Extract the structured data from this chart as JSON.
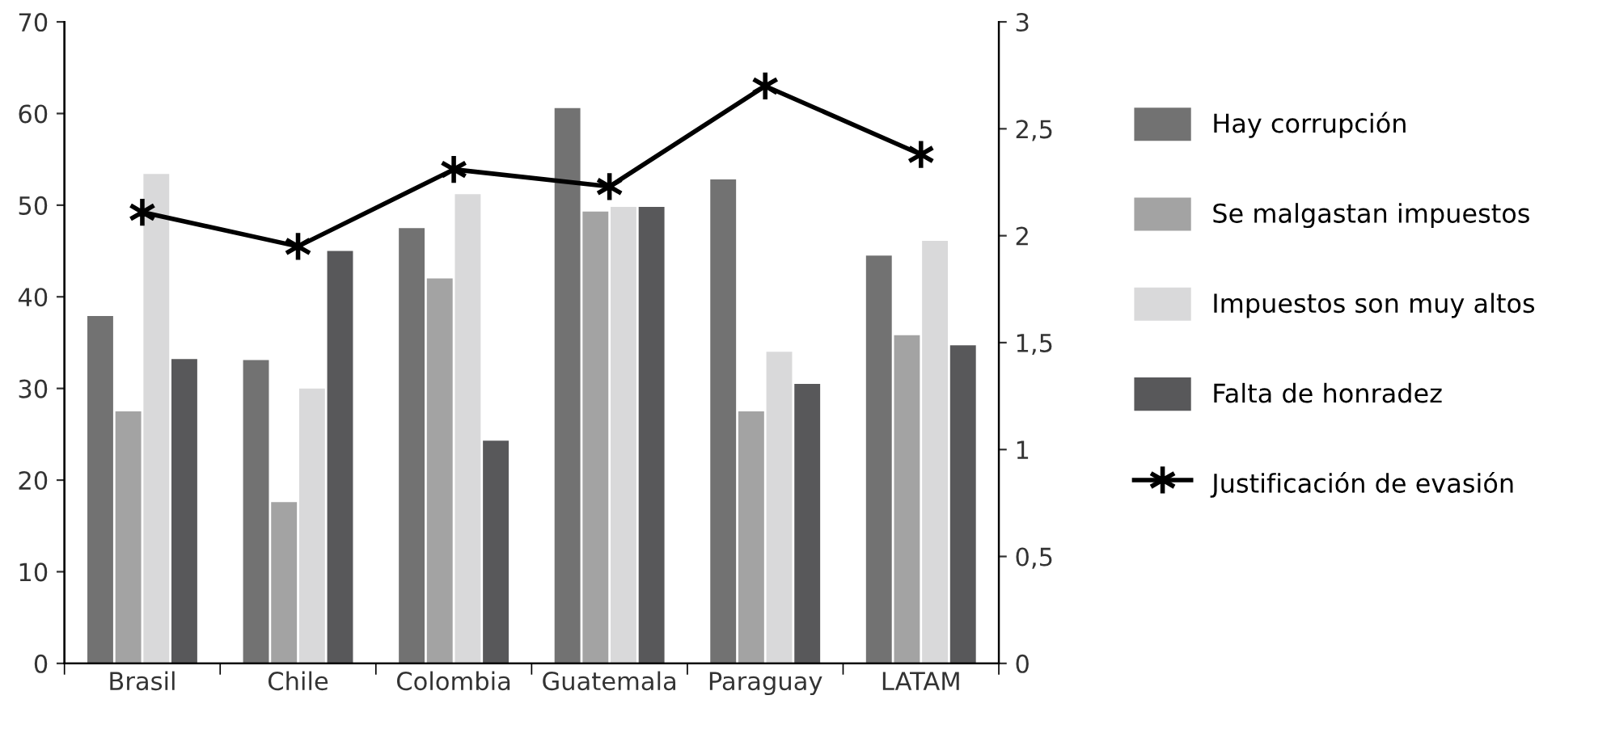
{
  "chart_data": {
    "type": "bar",
    "categories": [
      "Brasil",
      "Chile",
      "Colombia",
      "Guatemala",
      "Paraguay",
      "LATAM"
    ],
    "series": [
      {
        "name": "Hay corrupción",
        "color": "#727272",
        "values": [
          37.9,
          33.1,
          47.5,
          60.6,
          52.8,
          44.5
        ]
      },
      {
        "name": "Se malgastan impuestos",
        "color": "#a3a3a3",
        "values": [
          27.5,
          17.6,
          42,
          49.3,
          27.5,
          35.8
        ]
      },
      {
        "name": "Impuestos son muy altos",
        "color": "#d9d9da",
        "values": [
          53.4,
          30,
          51.2,
          49.8,
          34,
          46.1
        ]
      },
      {
        "name": "Falta de honradez",
        "color": "#58585a",
        "values": [
          33.2,
          45,
          24.3,
          49.8,
          30.5,
          34.7
        ]
      },
      {
        "name": "Justificación de evasión",
        "type": "line",
        "axis": "y2",
        "color": "#000000",
        "marker": "cross",
        "values": [
          2.11,
          1.95,
          2.31,
          2.23,
          2.7,
          2.38
        ]
      }
    ],
    "ylim": [
      0,
      70
    ],
    "yticks": [
      0,
      10,
      20,
      30,
      40,
      50,
      60,
      70
    ],
    "y2lim": [
      0,
      3
    ],
    "y2ticks": [
      0,
      {
        "value": 0.5,
        "label": "0,5"
      },
      1,
      {
        "value": 1.5,
        "label": "1,5"
      },
      2,
      {
        "value": 2.5,
        "label": "2,5"
      },
      3
    ],
    "grid": false,
    "legend": "right"
  }
}
